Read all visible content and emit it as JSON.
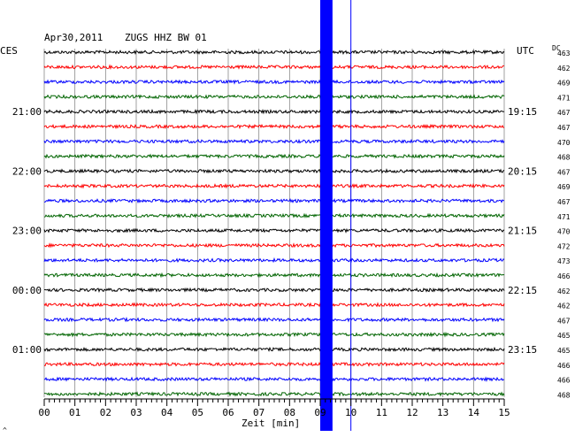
{
  "header": {
    "date": "Apr30,2011",
    "station": "ZUGS HHZ BW 01",
    "left_timezone": "CES",
    "right_timezone": "UTC",
    "dc_label": "DC"
  },
  "footer": {
    "xlabel": "Zeit [min]",
    "corner_mark": "^"
  },
  "chart_data": {
    "type": "line",
    "title": "Apr30,2011   ZUGS HHZ BW 01",
    "xlabel": "Zeit [min]",
    "xlim": [
      0,
      15
    ],
    "x_ticks": [
      "00",
      "01",
      "02",
      "03",
      "04",
      "05",
      "06",
      "07",
      "08",
      "09",
      "10",
      "11",
      "12",
      "13",
      "14",
      "15"
    ],
    "grid": true,
    "trace_colors": [
      "#000000",
      "#ff0000",
      "#0000ff",
      "#006400"
    ],
    "left_time_labels": [
      {
        "row": 4,
        "label": "21:00"
      },
      {
        "row": 8,
        "label": "22:00"
      },
      {
        "row": 12,
        "label": "23:00"
      },
      {
        "row": 16,
        "label": "00:00"
      },
      {
        "row": 20,
        "label": "01:00"
      }
    ],
    "right_time_labels": [
      {
        "row": 4,
        "label": "19:15"
      },
      {
        "row": 8,
        "label": "20:15"
      },
      {
        "row": 12,
        "label": "21:15"
      },
      {
        "row": 16,
        "label": "22:15"
      },
      {
        "row": 20,
        "label": "23:15"
      }
    ],
    "dc_values": [
      463,
      462,
      469,
      471,
      467,
      467,
      470,
      468,
      467,
      469,
      467,
      471,
      470,
      472,
      473,
      466,
      462,
      462,
      467,
      465,
      465,
      466,
      466,
      468
    ],
    "event": {
      "band_start_min": 9.0,
      "band_end_min": 9.4,
      "marker_min": 10.0,
      "color": "#0000ff"
    }
  }
}
